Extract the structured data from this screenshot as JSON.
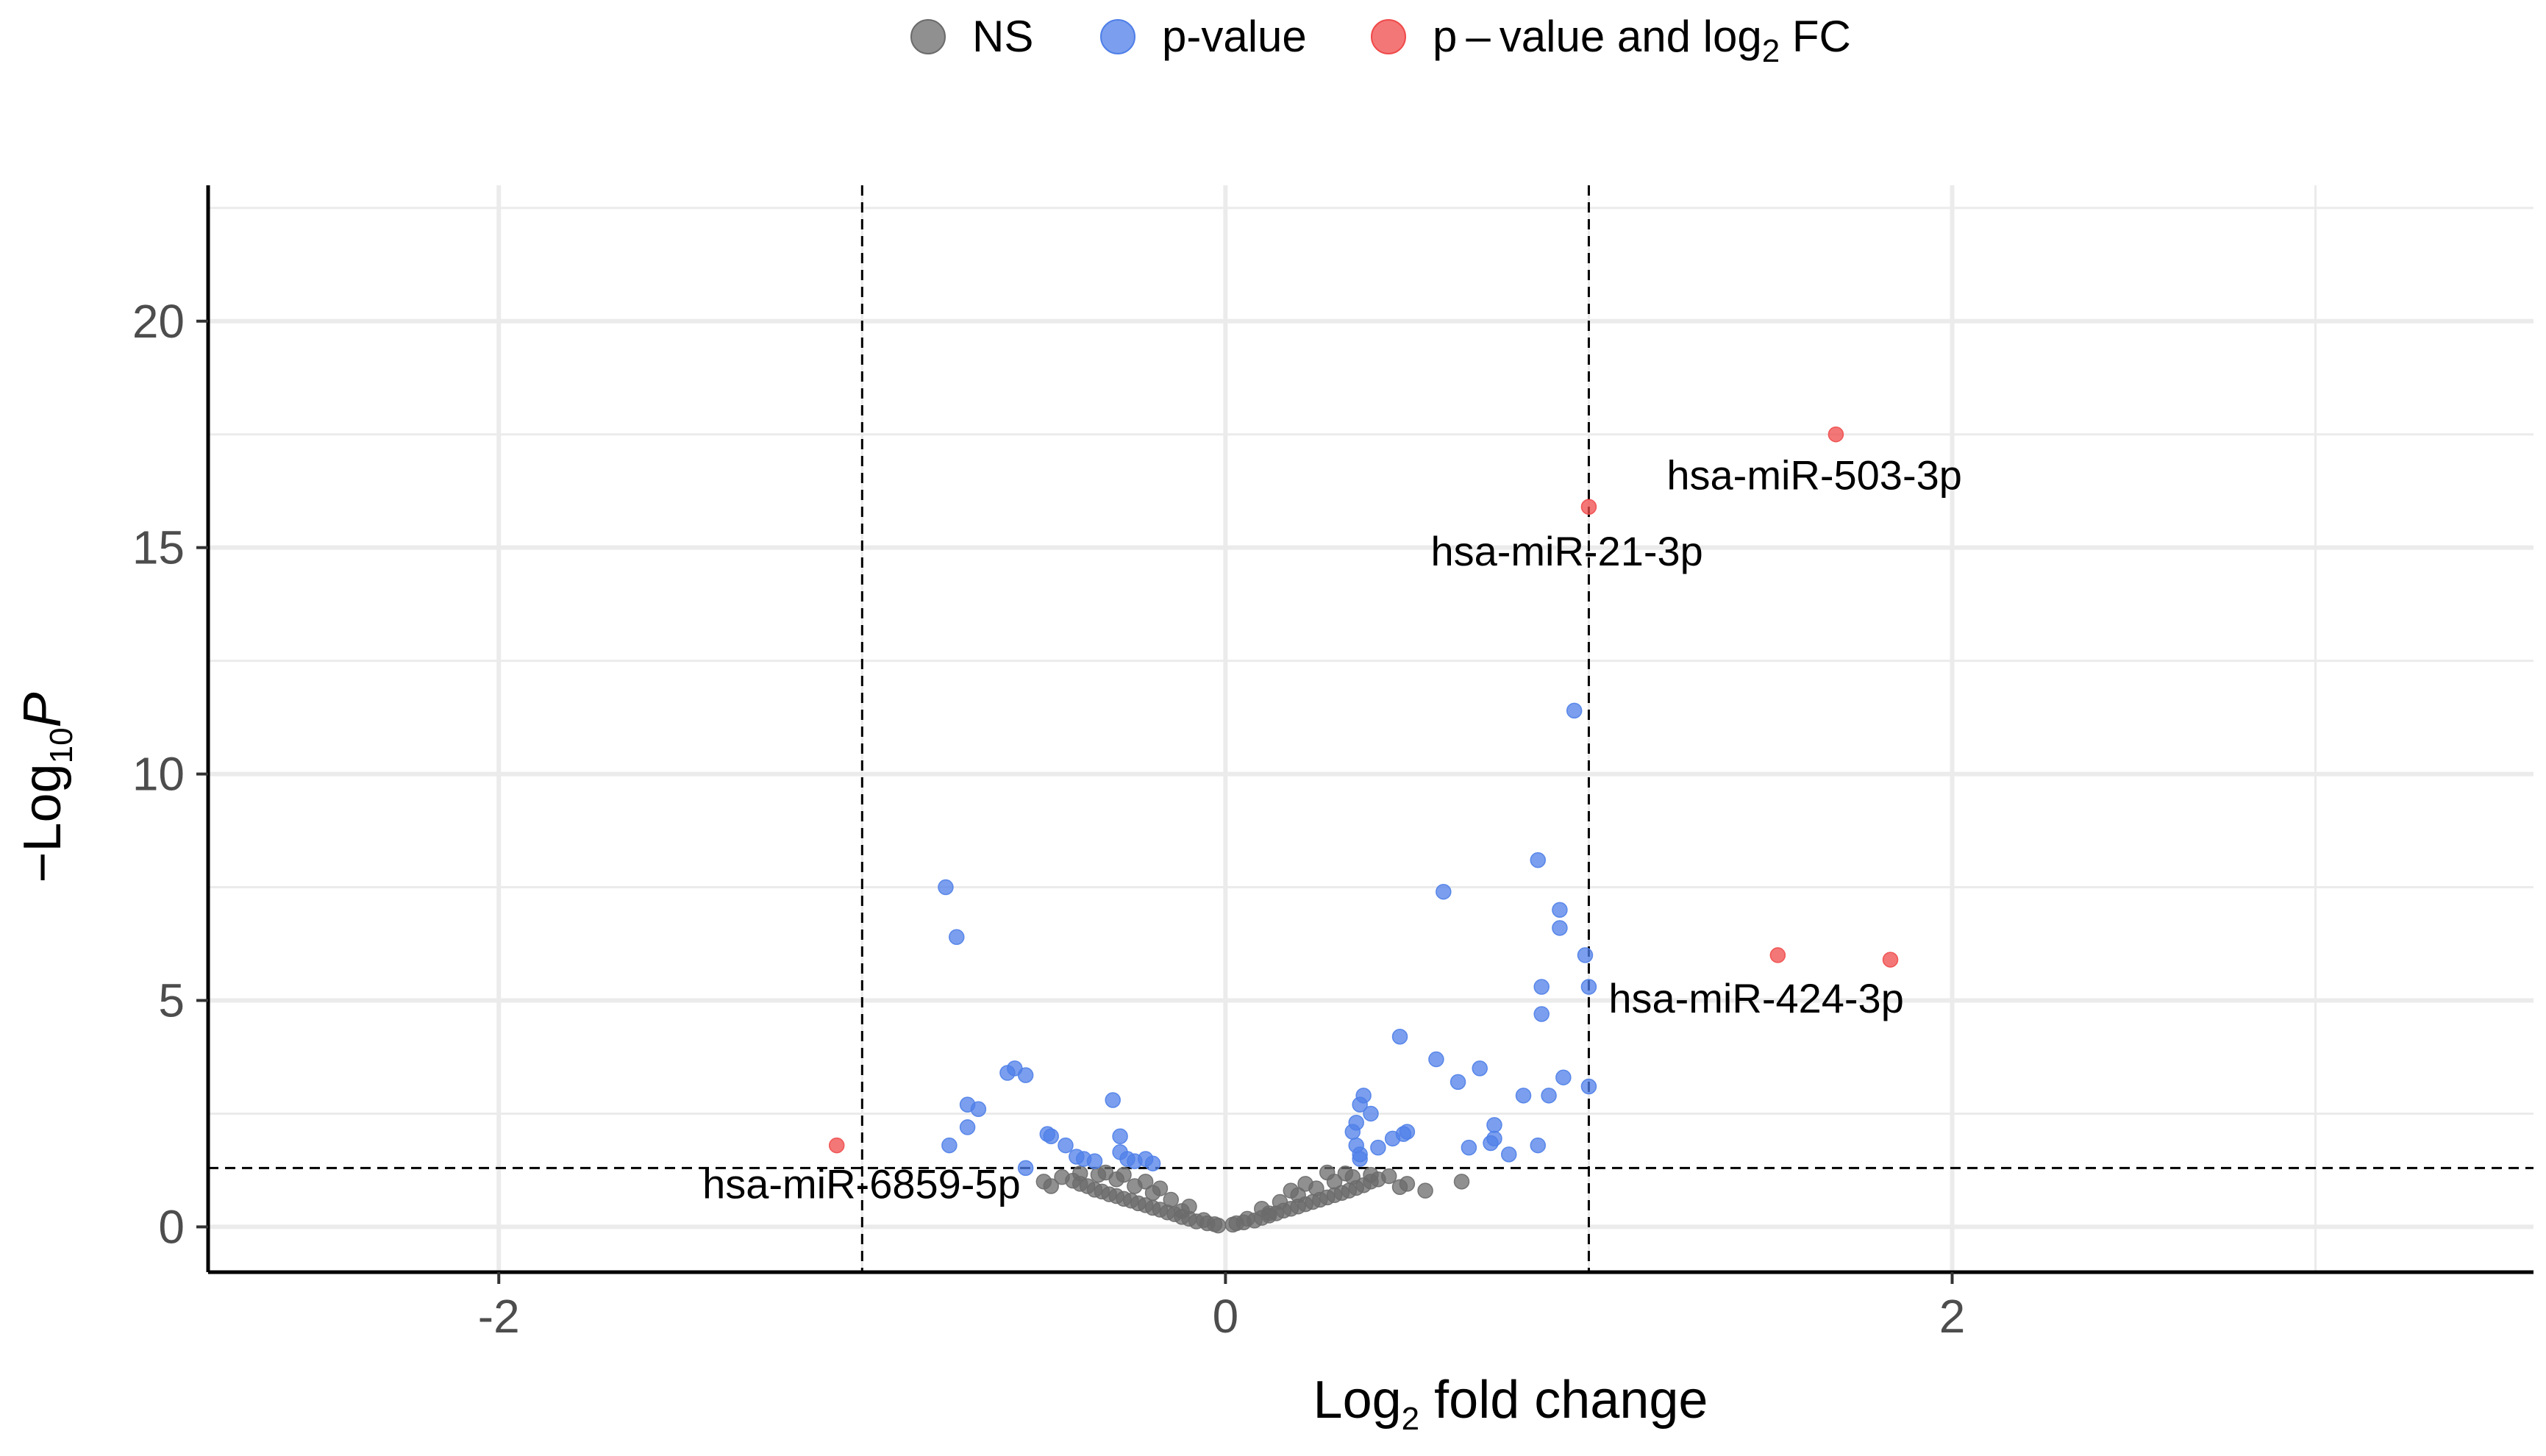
{
  "chart_data": {
    "type": "scatter",
    "xlabel": {
      "main": "Log",
      "sub": "2",
      "rest": " fold change"
    },
    "ylabel": {
      "pre": "−Log",
      "sub": "10",
      "italic": "P"
    },
    "xlim": [
      -2.8,
      3.6
    ],
    "ylim": [
      -1,
      23
    ],
    "xticks": [
      -2,
      0,
      2
    ],
    "xtick_labels": [
      "-2",
      "0",
      "2"
    ],
    "yticks": [
      0,
      5,
      10,
      15,
      20
    ],
    "ytick_labels": [
      "0",
      "5",
      "10",
      "15",
      "20"
    ],
    "grid": true,
    "legend_position": "top",
    "cutoffs": {
      "vertical": [
        -1,
        1
      ],
      "horizontal": 1.3
    },
    "colors": {
      "NS": "#6b6b6b",
      "p": "#4f7fe8",
      "both": "#f04a4a"
    },
    "legend": [
      {
        "key": "NS",
        "label": "NS"
      },
      {
        "key": "p",
        "label": "p-value"
      },
      {
        "key": "both",
        "label": "p – value and log",
        "sub": "2",
        "rest": " FC"
      }
    ],
    "series": [
      {
        "key": "NS",
        "points": [
          [
            -0.02,
            0.03
          ],
          [
            0.02,
            0.05
          ],
          [
            -0.05,
            0.08
          ],
          [
            0.05,
            0.1
          ],
          [
            -0.08,
            0.12
          ],
          [
            0.08,
            0.14
          ],
          [
            -0.1,
            0.18
          ],
          [
            0.1,
            0.2
          ],
          [
            -0.12,
            0.22
          ],
          [
            0.12,
            0.25
          ],
          [
            -0.14,
            0.28
          ],
          [
            0.14,
            0.3
          ],
          [
            -0.16,
            0.32
          ],
          [
            0.16,
            0.36
          ],
          [
            -0.18,
            0.38
          ],
          [
            0.18,
            0.4
          ],
          [
            -0.2,
            0.42
          ],
          [
            0.2,
            0.45
          ],
          [
            -0.22,
            0.48
          ],
          [
            0.22,
            0.5
          ],
          [
            -0.24,
            0.52
          ],
          [
            0.24,
            0.55
          ],
          [
            -0.26,
            0.58
          ],
          [
            0.26,
            0.6
          ],
          [
            -0.28,
            0.62
          ],
          [
            0.28,
            0.65
          ],
          [
            -0.3,
            0.68
          ],
          [
            0.3,
            0.7
          ],
          [
            -0.32,
            0.72
          ],
          [
            0.32,
            0.75
          ],
          [
            -0.34,
            0.78
          ],
          [
            0.34,
            0.8
          ],
          [
            -0.36,
            0.82
          ],
          [
            0.36,
            0.86
          ],
          [
            -0.38,
            0.9
          ],
          [
            0.38,
            0.92
          ],
          [
            -0.4,
            0.95
          ],
          [
            0.4,
            1.0
          ],
          [
            -0.42,
            1.02
          ],
          [
            0.42,
            1.05
          ],
          [
            -0.45,
            1.1
          ],
          [
            0.45,
            1.12
          ],
          [
            -0.5,
            1.0
          ],
          [
            0.5,
            0.95
          ],
          [
            -0.48,
            0.9
          ],
          [
            0.48,
            0.88
          ],
          [
            -0.15,
            0.6
          ],
          [
            0.15,
            0.55
          ],
          [
            -0.1,
            0.45
          ],
          [
            0.1,
            0.4
          ],
          [
            -0.2,
            0.75
          ],
          [
            0.2,
            0.7
          ],
          [
            -0.25,
            0.9
          ],
          [
            0.25,
            0.85
          ],
          [
            -0.3,
            1.05
          ],
          [
            0.3,
            1.0
          ],
          [
            -0.35,
            1.15
          ],
          [
            0.35,
            1.1
          ],
          [
            -0.22,
            1.0
          ],
          [
            0.22,
            0.95
          ],
          [
            -0.18,
            0.85
          ],
          [
            0.18,
            0.8
          ],
          [
            -0.12,
            0.35
          ],
          [
            0.12,
            0.3
          ],
          [
            -0.06,
            0.15
          ],
          [
            0.06,
            0.18
          ],
          [
            -0.03,
            0.06
          ],
          [
            0.03,
            0.08
          ],
          [
            -0.28,
            1.15
          ],
          [
            0.28,
            1.2
          ],
          [
            -0.33,
            1.2
          ],
          [
            0.33,
            1.18
          ],
          [
            -0.4,
            1.18
          ],
          [
            0.4,
            1.15
          ],
          [
            0.55,
            0.8
          ],
          [
            0.65,
            1.0
          ]
        ]
      },
      {
        "key": "p",
        "points": [
          [
            -0.77,
            7.5
          ],
          [
            -0.74,
            6.4
          ],
          [
            -0.71,
            2.7
          ],
          [
            -0.68,
            2.6
          ],
          [
            -0.71,
            2.2
          ],
          [
            -0.76,
            1.8
          ],
          [
            -0.6,
            3.4
          ],
          [
            -0.58,
            3.5
          ],
          [
            -0.55,
            3.35
          ],
          [
            -0.55,
            1.3
          ],
          [
            -0.49,
            2.05
          ],
          [
            -0.48,
            2.0
          ],
          [
            -0.44,
            1.8
          ],
          [
            -0.41,
            1.55
          ],
          [
            -0.39,
            1.5
          ],
          [
            -0.36,
            1.45
          ],
          [
            -0.31,
            2.8
          ],
          [
            -0.29,
            2.0
          ],
          [
            -0.29,
            1.65
          ],
          [
            -0.27,
            1.5
          ],
          [
            -0.25,
            1.45
          ],
          [
            -0.22,
            1.5
          ],
          [
            -0.2,
            1.4
          ],
          [
            0.35,
            2.1
          ],
          [
            0.36,
            1.8
          ],
          [
            0.37,
            1.6
          ],
          [
            0.37,
            1.5
          ],
          [
            0.36,
            2.3
          ],
          [
            0.37,
            2.7
          ],
          [
            0.38,
            2.9
          ],
          [
            0.4,
            2.5
          ],
          [
            0.42,
            1.75
          ],
          [
            0.46,
            1.95
          ],
          [
            0.49,
            2.05
          ],
          [
            0.5,
            2.1
          ],
          [
            0.48,
            4.2
          ],
          [
            0.58,
            3.7
          ],
          [
            0.6,
            7.4
          ],
          [
            0.64,
            3.2
          ],
          [
            0.67,
            1.75
          ],
          [
            0.7,
            3.5
          ],
          [
            0.73,
            1.85
          ],
          [
            0.74,
            1.95
          ],
          [
            0.74,
            2.25
          ],
          [
            0.78,
            1.6
          ],
          [
            0.82,
            2.9
          ],
          [
            0.86,
            1.8
          ],
          [
            0.87,
            4.7
          ],
          [
            0.87,
            5.3
          ],
          [
            0.86,
            8.1
          ],
          [
            0.89,
            2.9
          ],
          [
            0.92,
            7.0
          ],
          [
            0.92,
            6.6
          ],
          [
            0.93,
            3.3
          ],
          [
            0.96,
            11.4
          ],
          [
            0.99,
            6.0
          ],
          [
            1.0,
            5.3
          ],
          [
            1.0,
            3.1
          ]
        ]
      },
      {
        "key": "both",
        "points": [
          [
            1.68,
            17.5
          ],
          [
            1.0,
            15.9
          ],
          [
            1.52,
            6.0
          ],
          [
            1.83,
            5.9
          ],
          [
            -1.07,
            1.8
          ]
        ]
      }
    ],
    "annotations": [
      {
        "text": "hsa-miR-503-3p",
        "x": 1.68,
        "y": 17.5
      },
      {
        "text": "hsa-miR-21-3p",
        "x": 1.0,
        "y": 15.9
      },
      {
        "text": "hsa-miR-424-3p",
        "x": 1.52,
        "y": 6.0
      },
      {
        "text": "hsa-miR-6859-5p",
        "x": -1.07,
        "y": 1.8
      }
    ]
  }
}
